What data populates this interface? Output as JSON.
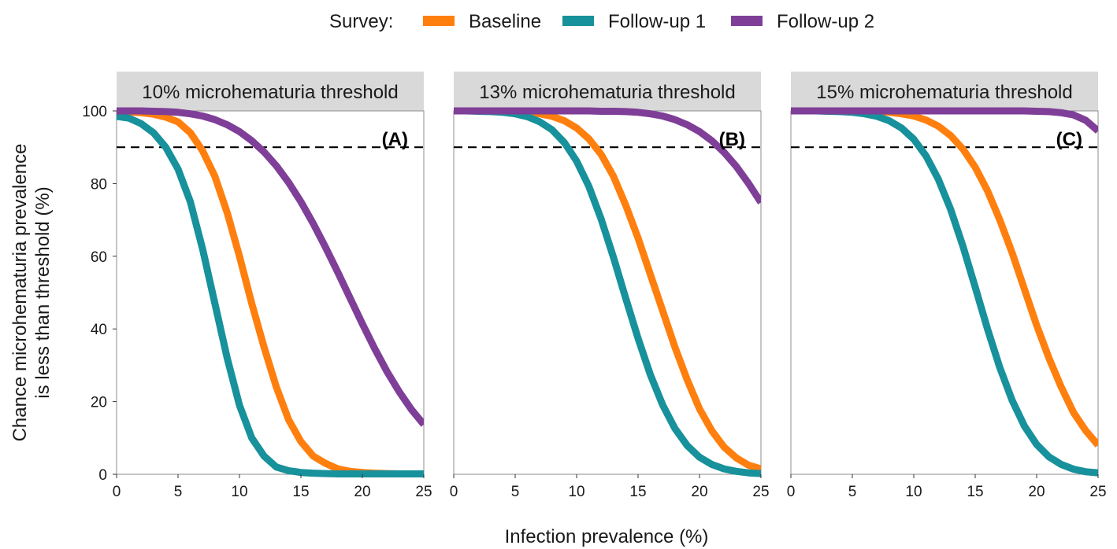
{
  "legend": {
    "title": "Survey:",
    "items": [
      {
        "label": "Baseline",
        "color": "#ff7f0e"
      },
      {
        "label": "Follow-up 1",
        "color": "#17919b"
      },
      {
        "label": "Follow-up 2",
        "color": "#7f3f98"
      }
    ]
  },
  "chart_data": {
    "type": "line",
    "xlabel": "Infection prevalence (%)",
    "ylabel": [
      "Chance microhematuria prevalence",
      "is less than threshold (%)"
    ],
    "xlim": [
      0,
      25
    ],
    "ylim": [
      0,
      100
    ],
    "xticks": [
      0,
      5,
      10,
      15,
      20,
      25
    ],
    "yticks": [
      0,
      20,
      40,
      60,
      80,
      100
    ],
    "reference_line": {
      "y": 90,
      "style": "dashed",
      "color": "#000000"
    },
    "x": [
      0,
      1,
      2,
      3,
      4,
      5,
      6,
      7,
      8,
      9,
      10,
      11,
      12,
      13,
      14,
      15,
      16,
      17,
      18,
      19,
      20,
      21,
      22,
      23,
      24,
      25
    ],
    "panels": [
      {
        "strip": "10% microhematuria threshold",
        "tag": "(A)",
        "series": [
          {
            "name": "Baseline",
            "values": [
              99.8,
              99.7,
              99.5,
              99.1,
              98.3,
              97,
              94,
              89,
              82,
              72,
              60,
              47,
              35,
              24,
              15,
              9,
              5,
              3,
              1.5,
              0.8,
              0.5,
              0.3,
              0.2,
              0.1,
              0.1,
              0.1
            ]
          },
          {
            "name": "Follow-up 1",
            "values": [
              98.5,
              98,
              96.5,
              94,
              90,
              84,
              75,
              62,
              47,
              32,
              19,
              10,
              5,
              2,
              1,
              0.5,
              0.3,
              0.2,
              0.1,
              0.1,
              0.1,
              0.1,
              0.1,
              0.1,
              0.1,
              0.1
            ]
          },
          {
            "name": "Follow-up 2",
            "values": [
              100,
              100,
              100,
              99.9,
              99.8,
              99.6,
              99.2,
              98.6,
              97.6,
              96.2,
              94.3,
              91.8,
              88.7,
              84.9,
              80.3,
              75,
              69,
              62.5,
              55.6,
              48.5,
              41.4,
              34.6,
              28.3,
              22.7,
              17.8,
              13.7
            ]
          }
        ]
      },
      {
        "strip": "13% microhematuria threshold",
        "tag": "(B)",
        "series": [
          {
            "name": "Baseline",
            "values": [
              100,
              100,
              100,
              100,
              99.9,
              99.8,
              99.6,
              99.2,
              98.5,
              97.3,
              95.3,
              92.3,
              88,
              82,
              74,
              65,
              55,
              45,
              35,
              26,
              18,
              12,
              7.5,
              4.5,
              2.5,
              1.5
            ]
          },
          {
            "name": "Follow-up 1",
            "values": [
              100,
              100,
              99.9,
              99.8,
              99.6,
              99.2,
              98.4,
              97,
              94.8,
              91.3,
              86.2,
              79.2,
              70.2,
              59.7,
              48.4,
              37.4,
              27.4,
              19.1,
              12.6,
              7.9,
              4.7,
              2.7,
              1.5,
              0.8,
              0.4,
              0.2
            ]
          },
          {
            "name": "Follow-up 2",
            "values": [
              100,
              100,
              100,
              100,
              100,
              100,
              100,
              100,
              100,
              100,
              100,
              100,
              99.9,
              99.9,
              99.8,
              99.6,
              99.2,
              98.6,
              97.6,
              96.2,
              94.3,
              91.8,
              88.6,
              84.7,
              80,
              74.8
            ]
          }
        ]
      },
      {
        "strip": "15% microhematuria threshold",
        "tag": "(C)",
        "series": [
          {
            "name": "Baseline",
            "values": [
              100,
              100,
              100,
              100,
              100,
              100,
              99.9,
              99.8,
              99.6,
              99.2,
              98.6,
              97.5,
              95.8,
              93.2,
              89.5,
              84.5,
              78,
              70,
              61,
              51,
              41,
              32,
              24,
              17,
              12,
              8
            ]
          },
          {
            "name": "Follow-up 1",
            "values": [
              100,
              100,
              100,
              99.9,
              99.8,
              99.6,
              99.2,
              98.5,
              97.3,
              95.3,
              92.2,
              87.6,
              81.2,
              72.9,
              62.8,
              51.5,
              40,
              29.4,
              20.4,
              13.3,
              8.2,
              4.8,
              2.7,
              1.4,
              0.7,
              0.4
            ]
          },
          {
            "name": "Follow-up 2",
            "values": [
              100,
              100,
              100,
              100,
              100,
              100,
              100,
              100,
              100,
              100,
              100,
              100,
              100,
              100,
              100,
              100,
              100,
              100,
              100,
              100,
              99.9,
              99.8,
              99.5,
              98.9,
              97.4,
              94.5
            ]
          }
        ]
      }
    ]
  }
}
